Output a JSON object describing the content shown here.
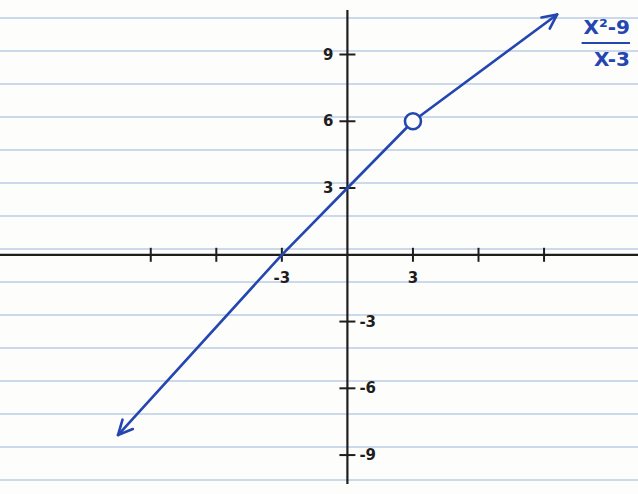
{
  "chart_data": {
    "type": "line",
    "annotations": [
      {
        "text": "X²-9"
      },
      {
        "text": "X-3"
      }
    ],
    "xlim": [
      -15.9,
      13.3
    ],
    "ylim": [
      -10.3,
      11
    ],
    "xticks": [
      {
        "value": -9,
        "label": null
      },
      {
        "value": -6,
        "label": null
      },
      -3,
      3,
      {
        "value": 6,
        "label": null
      },
      {
        "value": 9,
        "label": null
      }
    ],
    "yticks": [
      -9,
      -6,
      -3,
      3,
      6,
      9
    ],
    "grid": false,
    "series": [
      {
        "type": "line",
        "color": "#2346b0",
        "marker": "arrow",
        "line_style": "solid",
        "x": [
          -10.5,
          -3,
          0,
          3,
          9.6
        ],
        "values": [
          -8.1,
          0,
          3,
          6,
          10.8
        ]
      },
      {
        "type": "scatter",
        "color": "#2346b0",
        "marker": "open-circle",
        "x": [
          3
        ],
        "values": [
          6
        ]
      }
    ]
  }
}
